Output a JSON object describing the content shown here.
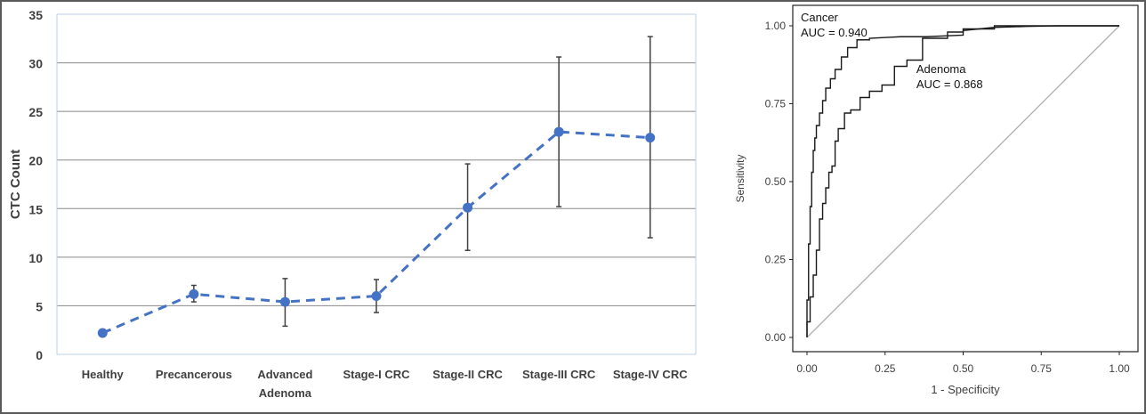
{
  "chart_data": [
    {
      "type": "line",
      "ylabel": "CTC Count",
      "xlabel": "",
      "ylim": [
        0,
        35
      ],
      "yticks": [
        0,
        5,
        10,
        15,
        20,
        25,
        30,
        35
      ],
      "grid": true,
      "categories": [
        [
          "Healthy"
        ],
        [
          "Precancerous"
        ],
        [
          "Advanced",
          "Adenoma"
        ],
        [
          "Stage-I CRC"
        ],
        [
          "Stage-II CRC"
        ],
        [
          "Stage-III CRC"
        ],
        [
          "Stage-IV CRC"
        ]
      ],
      "series": [
        {
          "values": [
            2.2,
            6.2,
            5.4,
            6.0,
            15.1,
            22.9,
            22.3
          ],
          "error_low": [
            null,
            5.4,
            2.9,
            4.3,
            10.7,
            15.2,
            12.0
          ],
          "error_high": [
            null,
            7.1,
            7.8,
            7.7,
            19.6,
            30.6,
            32.7
          ],
          "color": "#4472c4",
          "line_style": "dashed"
        }
      ]
    },
    {
      "type": "line",
      "xlabel": "1 - Specificity",
      "ylabel": "Sensitivity",
      "xlim": [
        0,
        1
      ],
      "ylim": [
        0,
        1
      ],
      "xticks": [
        "0.00",
        "0.25",
        "0.50",
        "0.75",
        "1.00"
      ],
      "yticks": [
        "0.00",
        "0.25",
        "0.50",
        "0.75",
        "1.00"
      ],
      "annotations": [
        {
          "lines": [
            "Cancer",
            "AUC = 0.940"
          ],
          "at": [
            -0.02,
            1.0
          ]
        },
        {
          "lines": [
            "Adenoma",
            "AUC = 0.868"
          ],
          "at": [
            0.35,
            0.835
          ]
        }
      ],
      "series": [
        {
          "name": "Cancer",
          "color": "#1a1a1a",
          "x": [
            0,
            0,
            0.005,
            0.005,
            0.01,
            0.01,
            0.015,
            0.015,
            0.02,
            0.02,
            0.025,
            0.025,
            0.03,
            0.03,
            0.04,
            0.04,
            0.05,
            0.05,
            0.06,
            0.06,
            0.075,
            0.075,
            0.09,
            0.09,
            0.11,
            0.11,
            0.13,
            0.13,
            0.16,
            0.16,
            0.2,
            0.2,
            0.26,
            0.3,
            0.38,
            0.45,
            0.5,
            0.5,
            0.55,
            0.6,
            0.7,
            0.8,
            0.9,
            1.0
          ],
          "y": [
            0,
            0.12,
            0.12,
            0.3,
            0.3,
            0.42,
            0.42,
            0.53,
            0.53,
            0.6,
            0.6,
            0.64,
            0.64,
            0.68,
            0.68,
            0.72,
            0.72,
            0.76,
            0.76,
            0.8,
            0.8,
            0.83,
            0.83,
            0.86,
            0.86,
            0.9,
            0.9,
            0.93,
            0.93,
            0.955,
            0.955,
            0.96,
            0.963,
            0.965,
            0.965,
            0.968,
            0.97,
            0.985,
            0.99,
            0.995,
            0.998,
            1.0,
            1.0,
            1.0
          ]
        },
        {
          "name": "Adenoma",
          "color": "#1a1a1a",
          "x": [
            0,
            0,
            0.01,
            0.01,
            0.02,
            0.02,
            0.03,
            0.03,
            0.04,
            0.04,
            0.05,
            0.05,
            0.06,
            0.06,
            0.07,
            0.07,
            0.08,
            0.08,
            0.09,
            0.09,
            0.1,
            0.1,
            0.12,
            0.12,
            0.14,
            0.14,
            0.17,
            0.17,
            0.2,
            0.2,
            0.24,
            0.24,
            0.28,
            0.28,
            0.32,
            0.32,
            0.37,
            0.37,
            0.45,
            0.45,
            0.5,
            0.5,
            0.6,
            0.6,
            0.7,
            0.8,
            1.0
          ],
          "y": [
            0,
            0.05,
            0.05,
            0.13,
            0.13,
            0.2,
            0.2,
            0.28,
            0.28,
            0.38,
            0.38,
            0.43,
            0.43,
            0.48,
            0.48,
            0.53,
            0.53,
            0.55,
            0.55,
            0.63,
            0.63,
            0.67,
            0.67,
            0.72,
            0.72,
            0.73,
            0.73,
            0.77,
            0.77,
            0.79,
            0.79,
            0.81,
            0.81,
            0.87,
            0.87,
            0.89,
            0.89,
            0.96,
            0.96,
            0.98,
            0.98,
            0.99,
            0.99,
            1.0,
            1.0,
            1.0,
            1.0
          ]
        },
        {
          "name": "",
          "color": "#b0b0b0",
          "x": [
            0,
            1
          ],
          "y": [
            0,
            1
          ]
        }
      ]
    }
  ]
}
